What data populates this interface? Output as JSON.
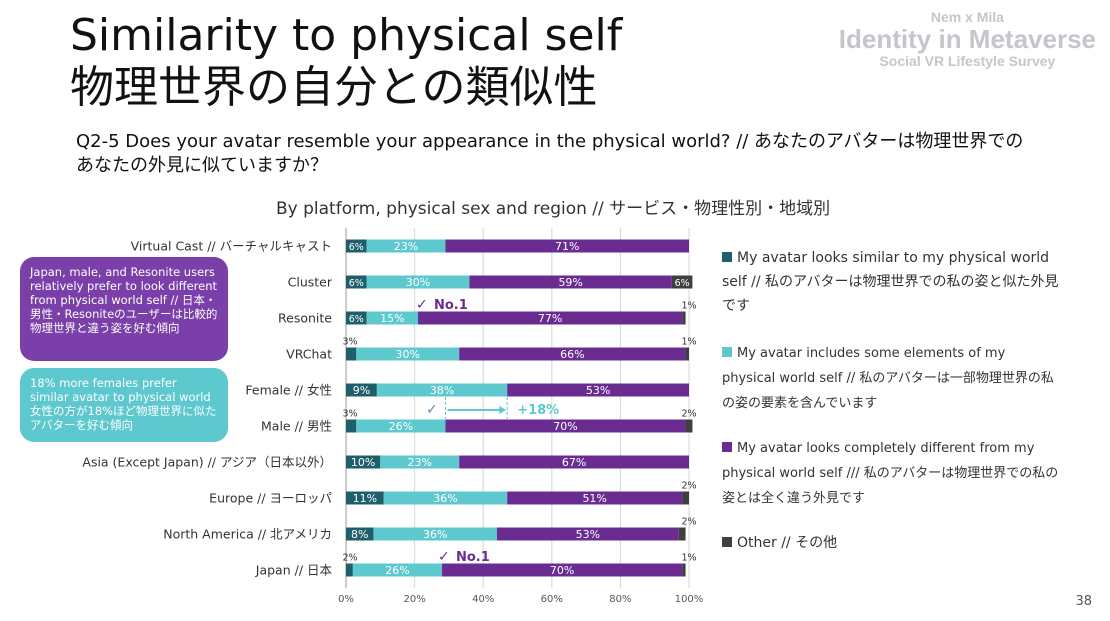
{
  "title_line1": "Similarity to physical self",
  "title_line2": "物理世界の自分との類似性",
  "brand": {
    "line1": "Nem x Mila",
    "line2": "Identity in Metaverse",
    "line3": "Social VR Lifestyle Survey"
  },
  "question": "Q2-5 Does your avatar resemble your appearance in the physical world? // あなたのアバターは物理世界でのあなたの外見に似ていますか？",
  "subtitle": "By platform, physical sex and region // サービス・物理性別・地域別",
  "callouts": {
    "purple": "Japan, male, and Resonite users relatively prefer to look different from physical world self // 日本・男性・Resoniteのユーザーは比較的物理世界と違う姿を好む傾向",
    "teal": "18% more females prefer similar avatar to physical world 女性の方が18%ほど物理世界に似たアバターを好む傾向"
  },
  "annotations": {
    "no1": "No.1",
    "check": "✓",
    "plus18": "+18%"
  },
  "page_number": "38",
  "colors": {
    "similar": "#1f5f6b",
    "some_elements": "#5ec8cf",
    "different": "#6a2c91",
    "other": "#3f3f3f"
  },
  "legend": [
    {
      "key": "similar",
      "text": "My avatar looks similar to my physical world self // 私のアバターは物理世界での私の姿と似た外見です"
    },
    {
      "key": "some_elements",
      "text": "My avatar includes some elements of my physical world self // 私のアバターは一部物理世界の私の姿の要素を含んでいます"
    },
    {
      "key": "different",
      "text": "My avatar looks completely different from my physical world self /// 私のアバターは物理世界での私の姿とは全く違う外見です"
    },
    {
      "key": "other",
      "text": "Other // その他"
    }
  ],
  "chart_data": {
    "type": "bar",
    "orientation": "horizontal",
    "stacked": true,
    "categories": [
      "Virtual Cast // バーチャルキャスト",
      "Cluster",
      "Resonite",
      "VRChat",
      "Female // 女性",
      "Male // 男性",
      "Asia (Except Japan) // アジア（日本以外）",
      "Europe // ヨーロッパ",
      "North America // 北アメリカ",
      "Japan // 日本"
    ],
    "series": [
      {
        "name": "My avatar looks similar to my physical world self // 私のアバターは物理世界での私の姿と似た外見です",
        "values": [
          6,
          6,
          6,
          3,
          9,
          3,
          10,
          11,
          8,
          2
        ]
      },
      {
        "name": "My avatar includes some elements of my physical world self // 私のアバターは一部物理世界の私の姿の要素を含んでいます",
        "values": [
          23,
          30,
          15,
          30,
          38,
          26,
          23,
          36,
          36,
          26
        ]
      },
      {
        "name": "My avatar looks completely different from my physical world self /// 私のアバターは物理世界での私の姿とは全く違う外見です",
        "values": [
          71,
          59,
          77,
          66,
          53,
          70,
          67,
          51,
          53,
          70
        ]
      },
      {
        "name": "Other // その他",
        "values": [
          0,
          6,
          1,
          1,
          0,
          2,
          0,
          2,
          2,
          1
        ]
      }
    ],
    "labels": [
      [
        "6%",
        "23%",
        "71%",
        ""
      ],
      [
        "6%",
        "30%",
        "59%",
        "6%"
      ],
      [
        "6%",
        "15%",
        "77%",
        "1%"
      ],
      [
        "3%",
        "30%",
        "66%",
        "1%"
      ],
      [
        "9%",
        "38%",
        "53%",
        ""
      ],
      [
        "3%",
        "26%",
        "70%",
        "2%"
      ],
      [
        "10%",
        "23%",
        "67%",
        ""
      ],
      [
        "11%",
        "36%",
        "51%",
        "2%"
      ],
      [
        "8%",
        "36%",
        "53%",
        "2%"
      ],
      [
        "2%",
        "26%",
        "70%",
        "1%"
      ]
    ],
    "xlim": [
      0,
      100
    ],
    "xticks": [
      "0%",
      "20%",
      "40%",
      "60%",
      "80%",
      "100%"
    ],
    "grid": true
  }
}
